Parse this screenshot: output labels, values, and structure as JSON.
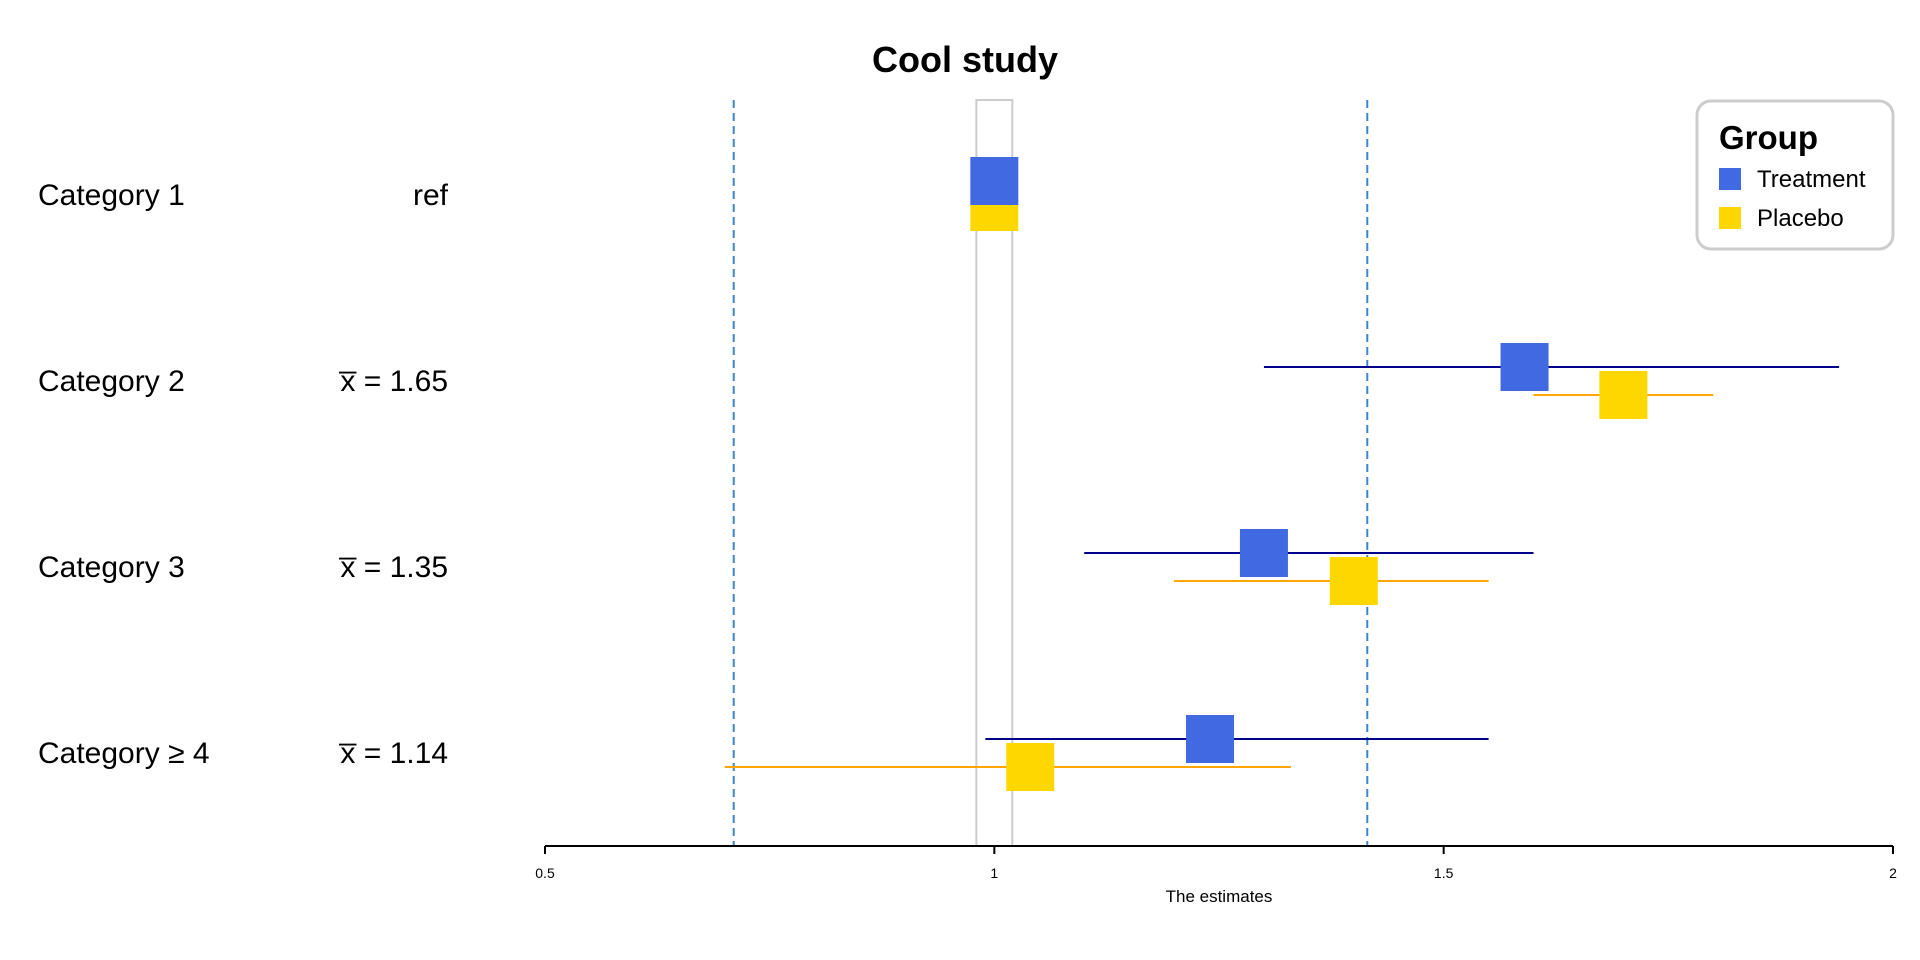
{
  "chart_data": {
    "type": "forest",
    "title": "Cool study",
    "xlabel": "The estimates",
    "xlim": [
      0.5,
      2
    ],
    "xticks": [
      0.5,
      1,
      1.5,
      2
    ],
    "xtick_labels": [
      "0.5",
      "1",
      "1.5",
      "2"
    ],
    "reference_band": [
      0.98,
      1.02
    ],
    "reference_lines": [
      0.71,
      1.415
    ],
    "legend": {
      "title": "Group",
      "position": "top-right",
      "entries": [
        {
          "name": "Treatment",
          "color": "#4169E1"
        },
        {
          "name": "Placebo",
          "color": "#FFD700"
        }
      ]
    },
    "rows": [
      {
        "label": "Category 1",
        "stat": "ref"
      },
      {
        "label": "Category 2",
        "stat": "x̅ = 1.65"
      },
      {
        "label": "Category 3",
        "stat": "x̅ = 1.35"
      },
      {
        "label": "Category ≥ 4",
        "stat": "x̅ = 1.14"
      }
    ],
    "series": [
      {
        "name": "Treatment",
        "color": "#4169E1",
        "ci_color": "#00008B",
        "points": [
          {
            "estimate": 1.0,
            "lower": null,
            "upper": null
          },
          {
            "estimate": 1.59,
            "lower": 1.3,
            "upper": 1.94
          },
          {
            "estimate": 1.3,
            "lower": 1.1,
            "upper": 1.6
          },
          {
            "estimate": 1.24,
            "lower": 0.99,
            "upper": 1.55
          }
        ]
      },
      {
        "name": "Placebo",
        "color": "#FFD700",
        "ci_color": "#FFA500",
        "points": [
          {
            "estimate": 1.0,
            "lower": null,
            "upper": null
          },
          {
            "estimate": 1.7,
            "lower": 1.6,
            "upper": 1.8
          },
          {
            "estimate": 1.4,
            "lower": 1.2,
            "upper": 1.55
          },
          {
            "estimate": 1.04,
            "lower": 0.7,
            "upper": 1.33
          }
        ]
      }
    ]
  }
}
